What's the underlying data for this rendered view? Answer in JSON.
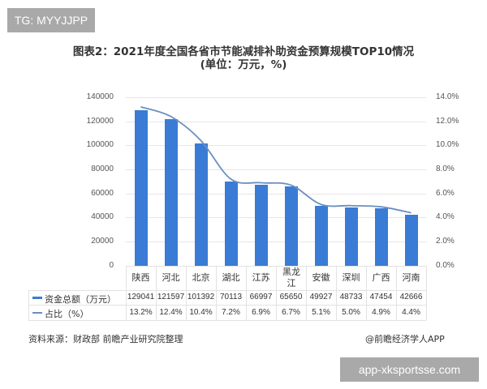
{
  "badge_top": "TG: MYYJJPP",
  "title": {
    "line1": "图表2：2021年度全国各省市节能减排补助资金预算规模TOP10情况",
    "line2": "(单位：万元，%)"
  },
  "colors": {
    "bar": "#3a7bd5",
    "line": "#6a8fc0"
  },
  "left_axis_ticks": [
    "140000",
    "120000",
    "100000",
    "80000",
    "60000",
    "40000",
    "20000",
    "0"
  ],
  "right_axis_ticks": [
    "14.0%",
    "12.0%",
    "10.0%",
    "8.0%",
    "6.0%",
    "4.0%",
    "2.0%",
    "0.0%"
  ],
  "table": {
    "row1_label": "资金总额（万元）",
    "row2_label": "占比（%）",
    "categories": [
      "陕西",
      "河北",
      "北京",
      "湖北",
      "江苏",
      "黑龙江",
      "安徽",
      "深圳",
      "广西",
      "河南"
    ],
    "amounts": [
      "129041",
      "121597",
      "101392",
      "70113",
      "66997",
      "65650",
      "49927",
      "48733",
      "47454",
      "42666"
    ],
    "shares": [
      "13.2%",
      "12.4%",
      "10.4%",
      "7.2%",
      "6.9%",
      "6.7%",
      "5.1%",
      "5.0%",
      "4.9%",
      "4.4%"
    ]
  },
  "footer": {
    "source": "资料来源：财政部 前瞻产业研究院整理",
    "credit": "@前瞻经济学人APP"
  },
  "badge_bottom": "app-xksportsse.com",
  "chart_data": {
    "type": "bar",
    "title": "图表2：2021年度全国各省市节能减排补助资金预算规模TOP10情况 (单位：万元，%)",
    "categories": [
      "陕西",
      "河北",
      "北京",
      "湖北",
      "江苏",
      "黑龙江",
      "安徽",
      "深圳",
      "广西",
      "河南"
    ],
    "series": [
      {
        "name": "资金总额（万元）",
        "type": "bar",
        "axis": "left",
        "values": [
          129041,
          121597,
          101392,
          70113,
          66997,
          65650,
          49927,
          48733,
          47454,
          42666
        ]
      },
      {
        "name": "占比（%）",
        "type": "line",
        "axis": "right",
        "values": [
          13.2,
          12.4,
          10.4,
          7.2,
          6.9,
          6.7,
          5.1,
          5.0,
          4.9,
          4.4
        ]
      }
    ],
    "ylim_left": [
      0,
      140000
    ],
    "ylim_right": [
      0,
      14.0
    ],
    "xlabel": "",
    "ylabel": "",
    "grid": true,
    "legend_position": "data-table"
  }
}
